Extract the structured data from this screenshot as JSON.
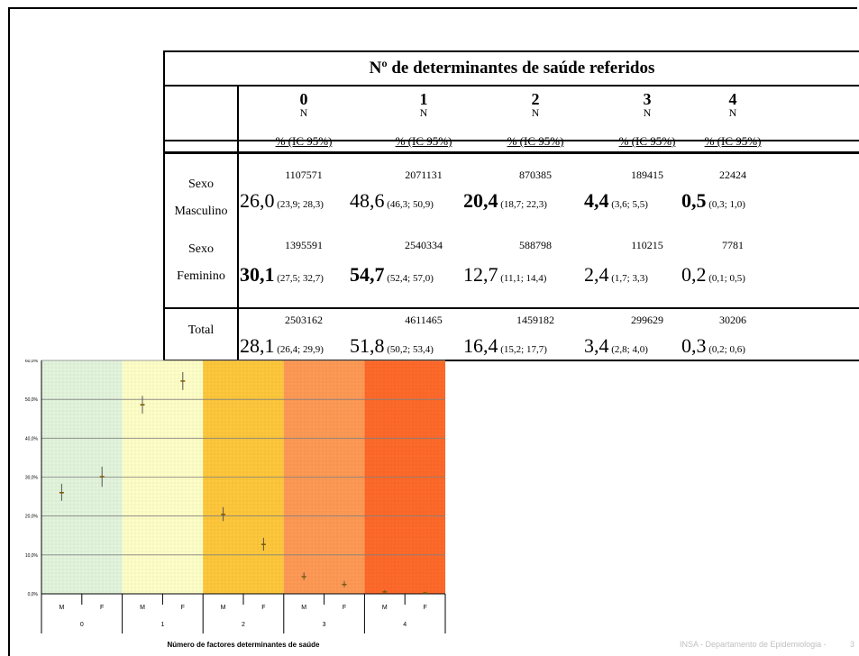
{
  "table": {
    "title": "Nº de determinantes de saúde referidos",
    "columns": [
      "0",
      "1",
      "2",
      "3",
      "4"
    ],
    "n_label": "N",
    "pct_label": "% (IC 95%)",
    "rows": [
      {
        "label_line1": "Sexo",
        "label_line2": "Masculino",
        "counts": [
          "1107571",
          "2071131",
          "870385",
          "189415",
          "22424"
        ],
        "pcts": [
          "26,0",
          "48,6",
          "20,4",
          "4,4",
          "0,5"
        ],
        "cis": [
          "(23,9; 28,3)",
          "(46,3; 50,9)",
          "(18,7; 22,3)",
          "(3,6; 5,5)",
          "(0,3; 1,0)"
        ],
        "bold": [
          false,
          false,
          true,
          true,
          true
        ]
      },
      {
        "label_line1": "Sexo",
        "label_line2": "Feminino",
        "counts": [
          "1395591",
          "2540334",
          "588798",
          "110215",
          "7781"
        ],
        "pcts": [
          "30,1",
          "54,7",
          "12,7",
          "2,4",
          "0,2"
        ],
        "cis": [
          "(27,5; 32,7)",
          "(52,4; 57,0)",
          "(11,1; 14,4)",
          "(1,7; 3,3)",
          "(0,1; 0,5)"
        ],
        "bold": [
          true,
          true,
          false,
          false,
          false
        ]
      },
      {
        "label_line1": "Total",
        "label_line2": "",
        "counts": [
          "2503162",
          "4611465",
          "1459182",
          "299629",
          "30206"
        ],
        "pcts": [
          "28,1",
          "51,8",
          "16,4",
          "3,4",
          "0,3"
        ],
        "cis": [
          "(26,4; 29,9)",
          "(50,2; 53,4)",
          "(15,2; 17,7)",
          "(2,8; 4,0)",
          "(0,2; 0,6)"
        ],
        "bold": [
          false,
          false,
          false,
          false,
          false
        ]
      }
    ]
  },
  "chart_data": {
    "type": "scatter",
    "xlabel": "Número de factores determinantes de saúde",
    "ylabel": "",
    "ylim": [
      0,
      60
    ],
    "y_ticks": [
      "0,0%",
      "10,0%",
      "20,0%",
      "30,0%",
      "40,0%",
      "50,0%",
      "60,0%"
    ],
    "groups": [
      "0",
      "1",
      "2",
      "3",
      "4"
    ],
    "sub_labels": [
      "M",
      "F"
    ],
    "band_colors": [
      "#e3f5dd",
      "#ffffc8",
      "#ffc83c",
      "#ff9a55",
      "#ff6a2a"
    ],
    "point_color": "#7a5a00",
    "points": [
      {
        "group": "0",
        "sex": "M",
        "value": 26.0,
        "lo": 23.9,
        "hi": 28.3
      },
      {
        "group": "0",
        "sex": "F",
        "value": 30.1,
        "lo": 27.5,
        "hi": 32.7
      },
      {
        "group": "1",
        "sex": "M",
        "value": 48.6,
        "lo": 46.3,
        "hi": 50.9
      },
      {
        "group": "1",
        "sex": "F",
        "value": 54.7,
        "lo": 52.4,
        "hi": 57.0
      },
      {
        "group": "2",
        "sex": "M",
        "value": 20.4,
        "lo": 18.7,
        "hi": 22.3
      },
      {
        "group": "2",
        "sex": "F",
        "value": 12.7,
        "lo": 11.1,
        "hi": 14.4
      },
      {
        "group": "3",
        "sex": "M",
        "value": 4.4,
        "lo": 3.6,
        "hi": 5.5
      },
      {
        "group": "3",
        "sex": "F",
        "value": 2.4,
        "lo": 1.7,
        "hi": 3.3
      },
      {
        "group": "4",
        "sex": "M",
        "value": 0.5,
        "lo": 0.3,
        "hi": 1.0
      },
      {
        "group": "4",
        "sex": "F",
        "value": 0.2,
        "lo": 0.1,
        "hi": 0.5
      }
    ]
  },
  "footer": {
    "text": "INSA - Departamento de Epidemiologia -",
    "page": "3"
  }
}
